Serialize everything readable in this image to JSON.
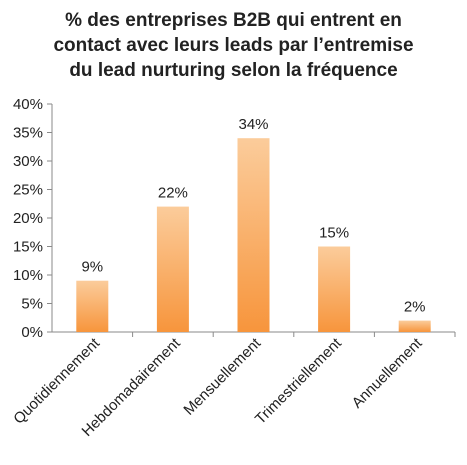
{
  "chart_data": {
    "type": "bar",
    "title_lines": [
      "% des entreprises B2B qui entrent en",
      "contact avec leurs leads par l’entremise",
      "du lead nurturing selon la fréquence"
    ],
    "categories": [
      "Quotidiennement",
      "Hebdomadairement",
      "Mensuellement",
      "Trimestriellement",
      "Annuellement"
    ],
    "values": [
      9,
      22,
      34,
      15,
      2
    ],
    "data_labels": [
      "9%",
      "22%",
      "34%",
      "15%",
      "2%"
    ],
    "y_ticks": [
      "0%",
      "5%",
      "10%",
      "15%",
      "20%",
      "25%",
      "30%",
      "35%",
      "40%"
    ],
    "ylim": [
      0,
      40
    ],
    "grid": false,
    "legend": "none",
    "colors": {
      "bar_light": "#fbcc9b",
      "bar_dark": "#f7953c",
      "axis": "#8a8a8a",
      "text": "#222222"
    }
  }
}
